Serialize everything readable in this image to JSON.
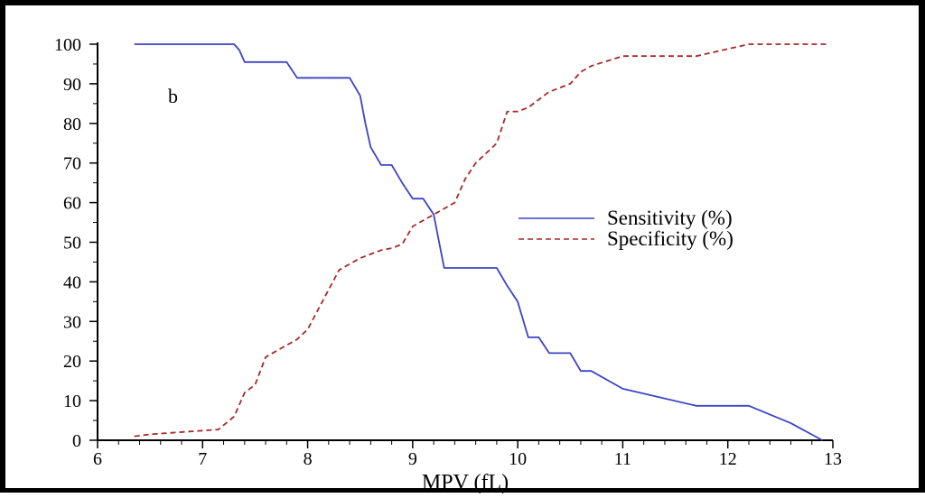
{
  "chart_data": {
    "type": "line",
    "panel_label": "b",
    "title": "",
    "xlabel": "MPV (fL)",
    "ylabel": "",
    "xlim": [
      6,
      13
    ],
    "ylim": [
      0,
      100
    ],
    "xticks": [
      "6",
      "7",
      "8",
      "9",
      "10",
      "11",
      "12",
      "13"
    ],
    "yticks": [
      "0",
      "10",
      "20",
      "30",
      "40",
      "50",
      "60",
      "70",
      "80",
      "90",
      "100"
    ],
    "grid": false,
    "legend_position": "center-right",
    "series": [
      {
        "name": "Sensitivity (%)",
        "color": "#3b44c4",
        "style": "solid",
        "points": [
          [
            6.35,
            100
          ],
          [
            7.3,
            100
          ],
          [
            7.35,
            98.5
          ],
          [
            7.4,
            95.5
          ],
          [
            7.8,
            95.5
          ],
          [
            7.9,
            91.5
          ],
          [
            8.4,
            91.5
          ],
          [
            8.5,
            87
          ],
          [
            8.55,
            80
          ],
          [
            8.6,
            74
          ],
          [
            8.7,
            69.5
          ],
          [
            8.8,
            69.5
          ],
          [
            8.9,
            65
          ],
          [
            9.0,
            61
          ],
          [
            9.1,
            61
          ],
          [
            9.2,
            57
          ],
          [
            9.3,
            43.5
          ],
          [
            9.8,
            43.5
          ],
          [
            9.9,
            39
          ],
          [
            10.0,
            35
          ],
          [
            10.1,
            26
          ],
          [
            10.2,
            26
          ],
          [
            10.3,
            22
          ],
          [
            10.5,
            22
          ],
          [
            10.6,
            17.5
          ],
          [
            10.7,
            17.5
          ],
          [
            11.0,
            13
          ],
          [
            11.7,
            8.7
          ],
          [
            12.2,
            8.7
          ],
          [
            12.6,
            4.3
          ],
          [
            12.9,
            0
          ]
        ]
      },
      {
        "name": "Specificity (%)",
        "color": "#a52a2a",
        "style": "dashed",
        "points": [
          [
            6.35,
            1
          ],
          [
            6.5,
            1.5
          ],
          [
            7.15,
            2.7
          ],
          [
            7.3,
            6
          ],
          [
            7.4,
            12
          ],
          [
            7.5,
            14
          ],
          [
            7.6,
            21
          ],
          [
            7.7,
            22.5
          ],
          [
            7.9,
            25.5
          ],
          [
            8.0,
            28
          ],
          [
            8.1,
            33
          ],
          [
            8.2,
            38
          ],
          [
            8.3,
            43
          ],
          [
            8.5,
            46
          ],
          [
            8.7,
            48
          ],
          [
            8.8,
            48.5
          ],
          [
            8.9,
            49.5
          ],
          [
            9.0,
            54
          ],
          [
            9.2,
            57
          ],
          [
            9.4,
            60
          ],
          [
            9.5,
            66
          ],
          [
            9.6,
            70
          ],
          [
            9.8,
            75
          ],
          [
            9.9,
            83
          ],
          [
            10.0,
            83
          ],
          [
            10.1,
            84
          ],
          [
            10.3,
            88
          ],
          [
            10.5,
            90
          ],
          [
            10.6,
            93
          ],
          [
            10.7,
            94.5
          ],
          [
            11.0,
            97
          ],
          [
            11.7,
            97
          ],
          [
            12.2,
            100
          ],
          [
            12.95,
            100
          ]
        ]
      }
    ]
  }
}
